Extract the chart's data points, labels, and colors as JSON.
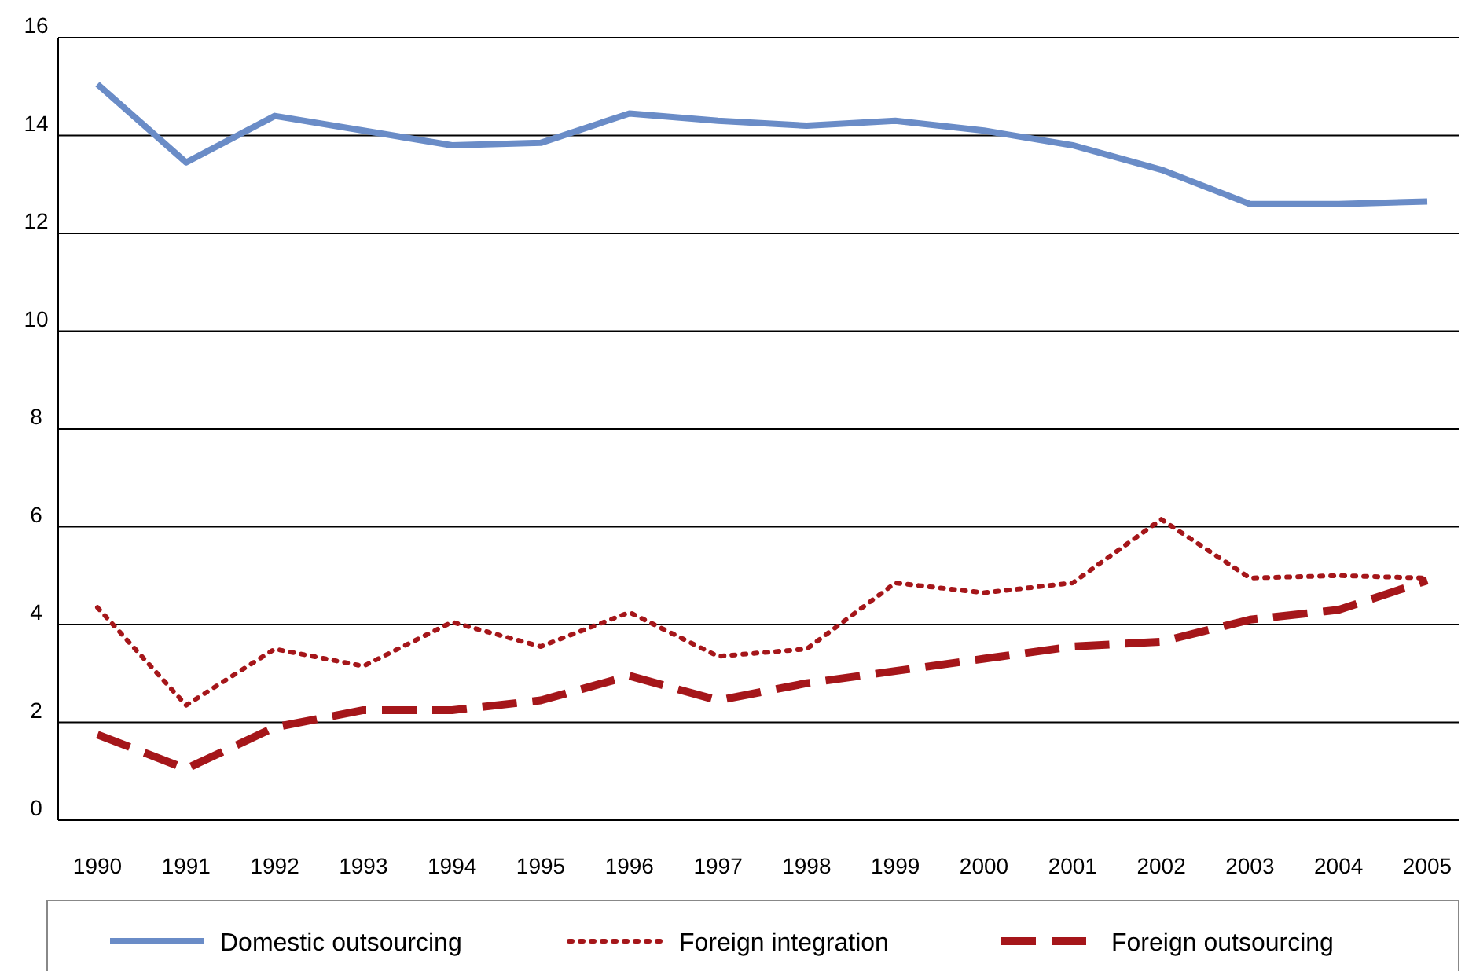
{
  "chart_data": {
    "type": "line",
    "categories": [
      "1990",
      "1991",
      "1992",
      "1993",
      "1994",
      "1995",
      "1996",
      "1997",
      "1998",
      "1999",
      "2000",
      "2001",
      "2002",
      "2003",
      "2004",
      "2005"
    ],
    "ylim": [
      0,
      16
    ],
    "yticks": [
      0,
      2,
      4,
      6,
      8,
      10,
      12,
      14,
      16
    ],
    "grid": "y",
    "legend": "bottom",
    "marker": "none",
    "series": [
      {
        "name": "Domestic outsourcing",
        "color": "#6a8cc7",
        "line_style": "solid",
        "values": [
          15.05,
          13.45,
          14.4,
          14.1,
          13.8,
          13.85,
          14.45,
          14.3,
          14.2,
          14.3,
          14.1,
          13.8,
          13.3,
          12.6,
          12.6,
          12.65
        ]
      },
      {
        "name": "Foreign integration",
        "color": "#a5161a",
        "line_style": "dotted",
        "values": [
          4.35,
          2.35,
          3.5,
          3.15,
          4.05,
          3.55,
          4.25,
          3.35,
          3.5,
          4.85,
          4.65,
          4.85,
          6.15,
          4.95,
          5.0,
          4.95
        ]
      },
      {
        "name": "Foreign outsourcing",
        "color": "#a5161a",
        "line_style": "dashed",
        "values": [
          1.75,
          1.05,
          1.9,
          2.25,
          2.25,
          2.45,
          2.95,
          2.45,
          2.8,
          3.05,
          3.3,
          3.55,
          3.65,
          4.1,
          4.3,
          4.9
        ]
      }
    ]
  }
}
